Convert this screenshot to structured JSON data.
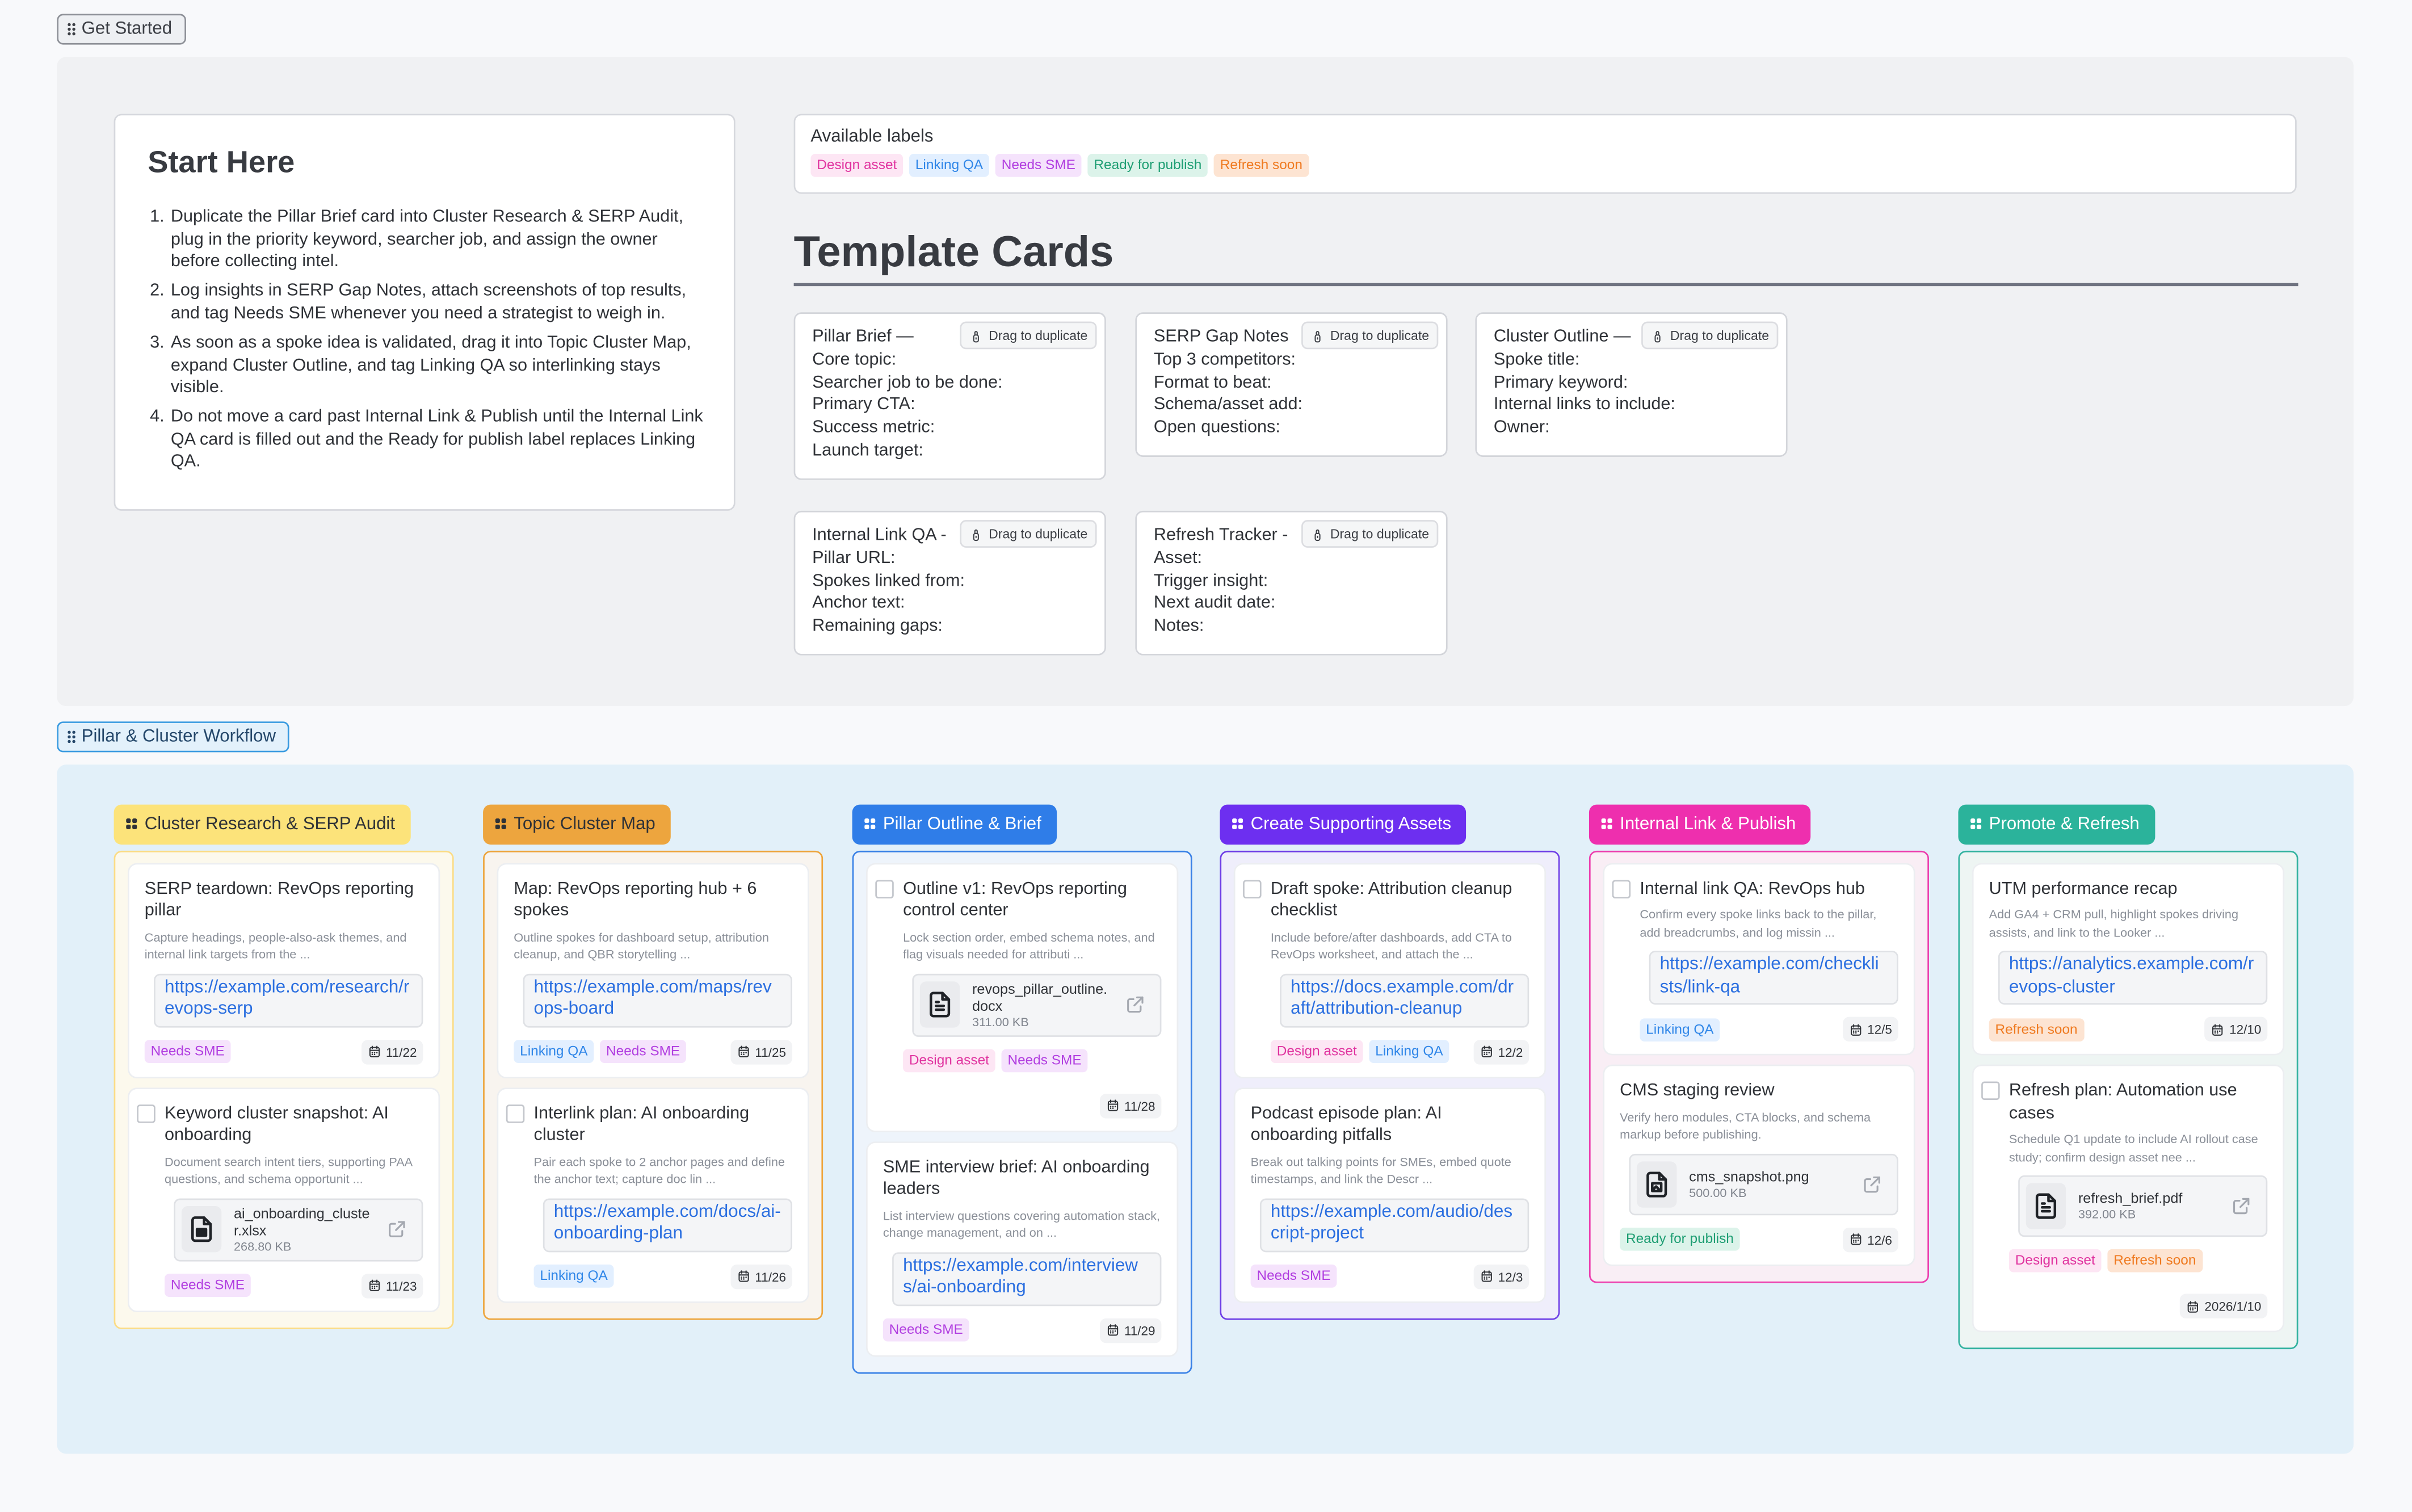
{
  "get_started": {
    "tag_label": "Get Started",
    "start_here": {
      "title": "Start Here",
      "steps": [
        "Duplicate the Pillar Brief card into Cluster Research & SERP Audit, plug in the priority keyword, searcher job, and assign the owner before collecting intel.",
        "Log insights in SERP Gap Notes, attach screenshots of top results, and tag Needs SME whenever you need a strategist to weigh in.",
        "As soon as a spoke idea is validated, drag it into Topic Cluster Map, expand Cluster Outline, and tag Linking QA so interlinking stays visible.",
        "Do not move a card past Internal Link & Publish until the Internal Link QA card is filled out and the Ready for publish label replaces Linking QA."
      ]
    },
    "available_labels": {
      "caption": "Available labels",
      "labels": [
        "Design asset",
        "Linking QA",
        "Needs SME",
        "Ready for publish",
        "Refresh soon"
      ]
    },
    "template_heading": "Template Cards",
    "duplicate_label": "Drag to duplicate",
    "templates": [
      {
        "title": "Pillar Brief —",
        "fields": [
          "Core topic:",
          "Searcher job to be done:",
          "Primary CTA:",
          "Success metric:",
          "Launch target:"
        ]
      },
      {
        "title": "SERP Gap Notes",
        "fields": [
          "Top 3 competitors:",
          "Format to beat:",
          "Schema/asset add:",
          "Open questions:"
        ]
      },
      {
        "title": "Cluster Outline —",
        "fields": [
          "Spoke title:",
          "Primary keyword:",
          "Internal links to include:",
          "Owner:"
        ]
      },
      {
        "title": "Internal Link QA -",
        "fields": [
          "Pillar URL:",
          "Spokes linked from:",
          "Anchor text:",
          "Remaining gaps:"
        ]
      },
      {
        "title": "Refresh Tracker -",
        "fields": [
          "Asset:",
          "Trigger insight:",
          "Next audit date:",
          "Notes:"
        ]
      }
    ]
  },
  "label_colors": {
    "Design asset": {
      "fg": "#e0339f",
      "bg": "#fde6f4"
    },
    "Linking QA": {
      "fg": "#2f86e8",
      "bg": "#e2efff"
    },
    "Needs SME": {
      "fg": "#b13ee0",
      "bg": "#f5e3fc"
    },
    "Ready for publish": {
      "fg": "#1e9e73",
      "bg": "#dcf3ea"
    },
    "Refresh soon": {
      "fg": "#ef7a20",
      "bg": "#fde4d2"
    }
  },
  "workflow": {
    "tag_label": "Pillar & Cluster Workflow",
    "columns": [
      {
        "title": "Cluster Research & SERP Audit",
        "head_bg": "#fce37a",
        "head_fg": "#2f3237",
        "border": "#fbdc86",
        "bg": "#fcf9ed",
        "cards": [
          {
            "title": "SERP teardown: RevOps reporting pillar",
            "checkbox": false,
            "desc": "Capture headings, people-also-ask themes, and internal link targets from the  ...",
            "link": "https://example.com/research/revops-serp",
            "tags": [
              "Needs SME"
            ],
            "date": "11/22"
          },
          {
            "title": "Keyword cluster snapshot: AI onboarding",
            "checkbox": true,
            "desc": "Document search intent tiers, supporting PAA questions, and schema opportunit ...",
            "file": {
              "name": "ai_onboarding_cluster.xlsx",
              "size": "268.80 KB",
              "icon": "spreadsheet-icon"
            },
            "tags": [
              "Needs SME"
            ],
            "date": "11/23"
          }
        ]
      },
      {
        "title": "Topic Cluster Map",
        "head_bg": "#eda53e",
        "head_fg": "#2f3237",
        "border": "#eda53e",
        "bg": "#f8f4ef",
        "cards": [
          {
            "title": "Map: RevOps reporting hub + 6 spokes",
            "checkbox": false,
            "desc": "Outline spokes for dashboard setup, attribution cleanup, and QBR storytelling ...",
            "link": "https://example.com/maps/revops-board",
            "tags": [
              "Linking QA",
              "Needs SME"
            ],
            "date": "11/25"
          },
          {
            "title": "Interlink plan: AI onboarding cluster",
            "checkbox": true,
            "desc": "Pair each spoke to 2 anchor pages and define the anchor text; capture doc lin ...",
            "link": "https://example.com/docs/ai-onboarding-plan",
            "tags": [
              "Linking QA"
            ],
            "date": "11/26"
          }
        ]
      },
      {
        "title": "Pillar Outline & Brief",
        "head_bg": "#2f7de8",
        "head_fg": "#ffffff",
        "border": "#3b82e6",
        "bg": "#eef4fb",
        "cards": [
          {
            "title": "Outline v1: RevOps reporting control center",
            "checkbox": true,
            "desc": "Lock section order, embed schema notes, and flag visuals needed for attributi ...",
            "file": {
              "name": "revops_pillar_outline.docx",
              "size": "311.00 KB",
              "icon": "document-icon"
            },
            "tags": [
              "Design asset",
              "Needs SME"
            ],
            "date": "11/28",
            "date_own_row": true
          },
          {
            "title": "SME interview brief: AI onboarding leaders",
            "checkbox": false,
            "desc": "List interview questions covering automation stack, change management, and on ...",
            "link": "https://example.com/interviews/ai-onboarding",
            "tags": [
              "Needs SME"
            ],
            "date": "11/29"
          }
        ]
      },
      {
        "title": "Create Supporting Assets",
        "head_bg": "#6d2ff0",
        "head_fg": "#ffffff",
        "border": "#6f3fe6",
        "bg": "#efeefb",
        "cards": [
          {
            "title": "Draft spoke: Attribution cleanup checklist",
            "checkbox": true,
            "desc": "Include before/after dashboards, add CTA to RevOps worksheet, and attach the  ...",
            "link": "https://docs.example.com/draft/attribution-cleanup",
            "tags": [
              "Design asset",
              "Linking QA"
            ],
            "date": "12/2"
          },
          {
            "title": "Podcast episode plan: AI onboarding pitfalls",
            "checkbox": false,
            "desc": "Break out talking points for SMEs, embed quote timestamps, and link the Descr ...",
            "link": "https://example.com/audio/descript-project",
            "tags": [
              "Needs SME"
            ],
            "date": "12/3"
          }
        ]
      },
      {
        "title": "Internal Link & Publish",
        "head_bg": "#ee2fae",
        "head_fg": "#ffffff",
        "border": "#ec3fae",
        "bg": "#f9eef5",
        "cards": [
          {
            "title": "Internal link QA: RevOps hub",
            "checkbox": true,
            "desc": "Confirm every spoke links back to the pillar, add breadcrumbs, and log missin ...",
            "link": "https://example.com/checklists/link-qa",
            "tags": [
              "Linking QA"
            ],
            "date": "12/5"
          },
          {
            "title": "CMS staging review",
            "checkbox": false,
            "desc": "Verify hero modules, CTA blocks, and schema markup before publishing.",
            "file": {
              "name": "cms_snapshot.png",
              "size": "500.00 KB",
              "icon": "image-file-icon"
            },
            "tags": [
              "Ready for publish"
            ],
            "date": "12/6"
          }
        ]
      },
      {
        "title": "Promote & Refresh",
        "head_bg": "#2bb39b",
        "head_fg": "#ffffff",
        "border": "#35b3a0",
        "bg": "#eef5f3",
        "cards": [
          {
            "title": "UTM performance recap",
            "checkbox": false,
            "desc": "Add GA4 + CRM pull, highlight spokes driving assists, and link to the Looker  ...",
            "link": "https://analytics.example.com/revops-cluster",
            "tags": [
              "Refresh soon"
            ],
            "date": "12/10"
          },
          {
            "title": "Refresh plan: Automation use cases",
            "checkbox": true,
            "desc": "Schedule Q1 update to include AI rollout case study; confirm design asset nee ...",
            "file": {
              "name": "refresh_brief.pdf",
              "size": "392.00 KB",
              "icon": "document-icon"
            },
            "tags": [
              "Design asset",
              "Refresh soon"
            ],
            "date": "2026/1/10",
            "date_own_row": true
          }
        ]
      }
    ]
  }
}
